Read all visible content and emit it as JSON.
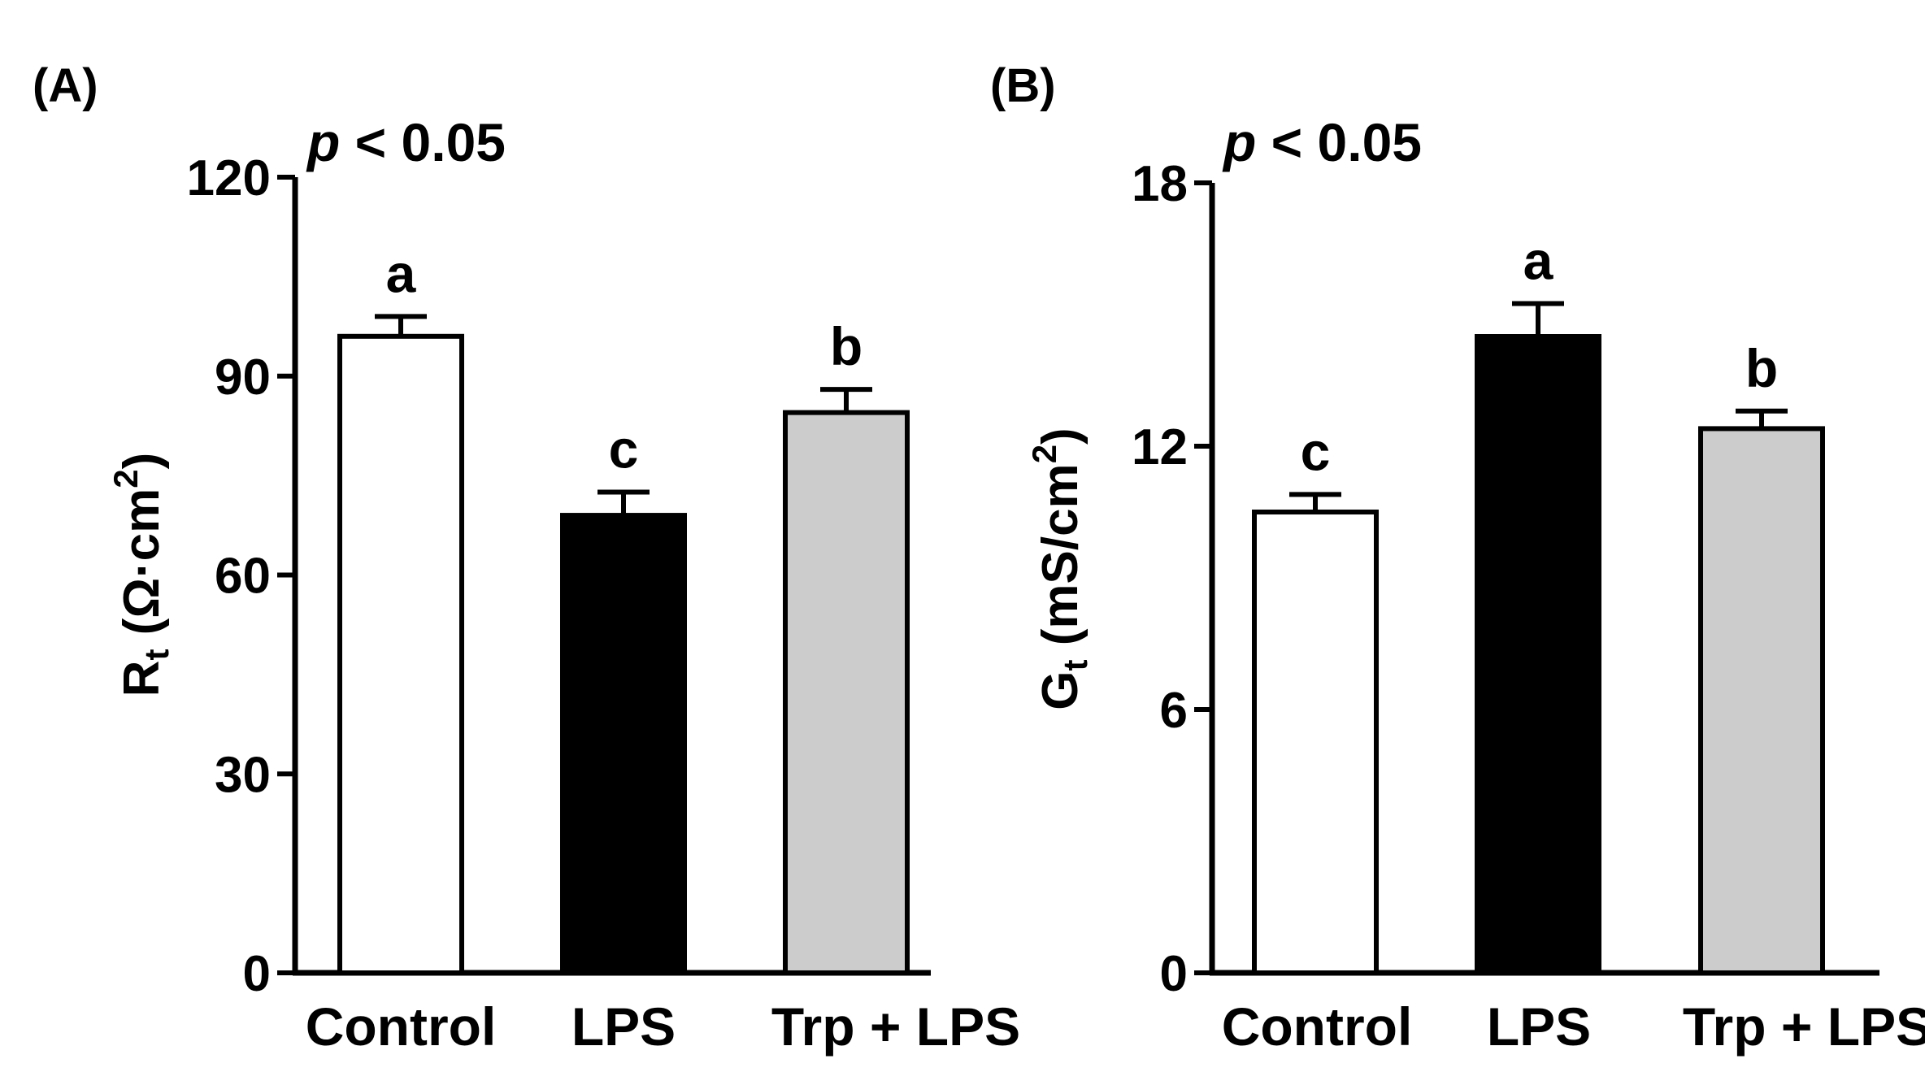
{
  "colors": {
    "control": "#ffffff",
    "lps": "#000000",
    "trp_lps": "#cccccc",
    "stroke": "#000000"
  },
  "chart_data": [
    {
      "panel_label": "(A)",
      "type": "bar",
      "significance": {
        "p": "p",
        "rest": " < 0.05"
      },
      "ylabel": {
        "main": "R",
        "sub": "t",
        "unit_open": " (Ω·cm",
        "sup": "2",
        "unit_close": ")"
      },
      "ylim": [
        0,
        120
      ],
      "yticks": [
        "0",
        "30",
        "60",
        "90",
        "120"
      ],
      "categories": [
        "Control",
        "LPS",
        "Trp + LPS"
      ],
      "values": [
        96,
        69,
        84.5
      ],
      "errors": [
        3,
        3.5,
        3.5
      ],
      "letters": [
        "a",
        "c",
        "b"
      ]
    },
    {
      "panel_label": "(B)",
      "type": "bar",
      "significance": {
        "p": "p",
        "rest": " < 0.05"
      },
      "ylabel": {
        "main": "G",
        "sub": "t",
        "unit_open": " (mS/cm",
        "sup": "2",
        "unit_close": ")"
      },
      "ylim": [
        0,
        18
      ],
      "yticks": [
        "0",
        "6",
        "12",
        "18"
      ],
      "categories": [
        "Control",
        "LPS",
        "Trp + LPS"
      ],
      "values": [
        10.5,
        14.5,
        12.4
      ],
      "errors": [
        0.4,
        0.75,
        0.4
      ],
      "letters": [
        "c",
        "a",
        "b"
      ]
    }
  ]
}
